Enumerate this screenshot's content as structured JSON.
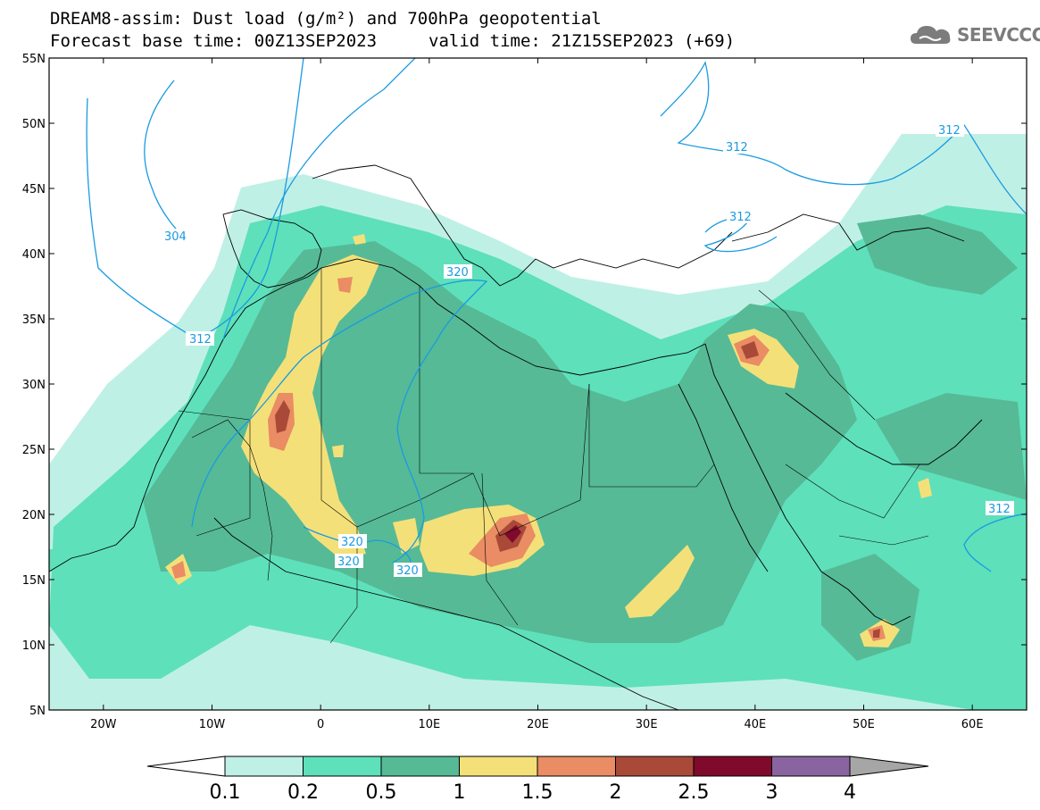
{
  "title": {
    "line1": "DREAM8-assim: Dust load (g/m²) and 700hPa geopotential",
    "line2_left": "Forecast base time: 00Z13SEP2023",
    "line2_right": "valid time: 21Z15SEP2023 (+69)"
  },
  "logo": {
    "text": "SEEVCCC",
    "icon": "cloud-logo-icon",
    "color": "#7c7c7c"
  },
  "map": {
    "lon_range": [
      -25,
      65
    ],
    "lat_range": [
      5,
      55
    ],
    "lat_ticks": [
      "55N",
      "50N",
      "45N",
      "40N",
      "35N",
      "30N",
      "25N",
      "20N",
      "15N",
      "10N",
      "5N"
    ],
    "lon_ticks": [
      "20W",
      "10W",
      "0",
      "10E",
      "20E",
      "30E",
      "40E",
      "50E",
      "60E"
    ],
    "contour_labels": [
      "304",
      "312",
      "320",
      "320",
      "320",
      "320",
      "312",
      "312",
      "312",
      "312"
    ],
    "contour_color": "#1a9be0"
  },
  "colorbar": {
    "levels": [
      "0.1",
      "0.2",
      "0.5",
      "1",
      "1.5",
      "2",
      "2.5",
      "3",
      "4"
    ],
    "colors": [
      "#bff0e6",
      "#5ee0bb",
      "#56ba96",
      "#f4e079",
      "#ea8c64",
      "#a94938",
      "#7f0a2c",
      "#8a64a0"
    ],
    "under_color": "#ffffff",
    "over_color": "#a6a6a6"
  }
}
